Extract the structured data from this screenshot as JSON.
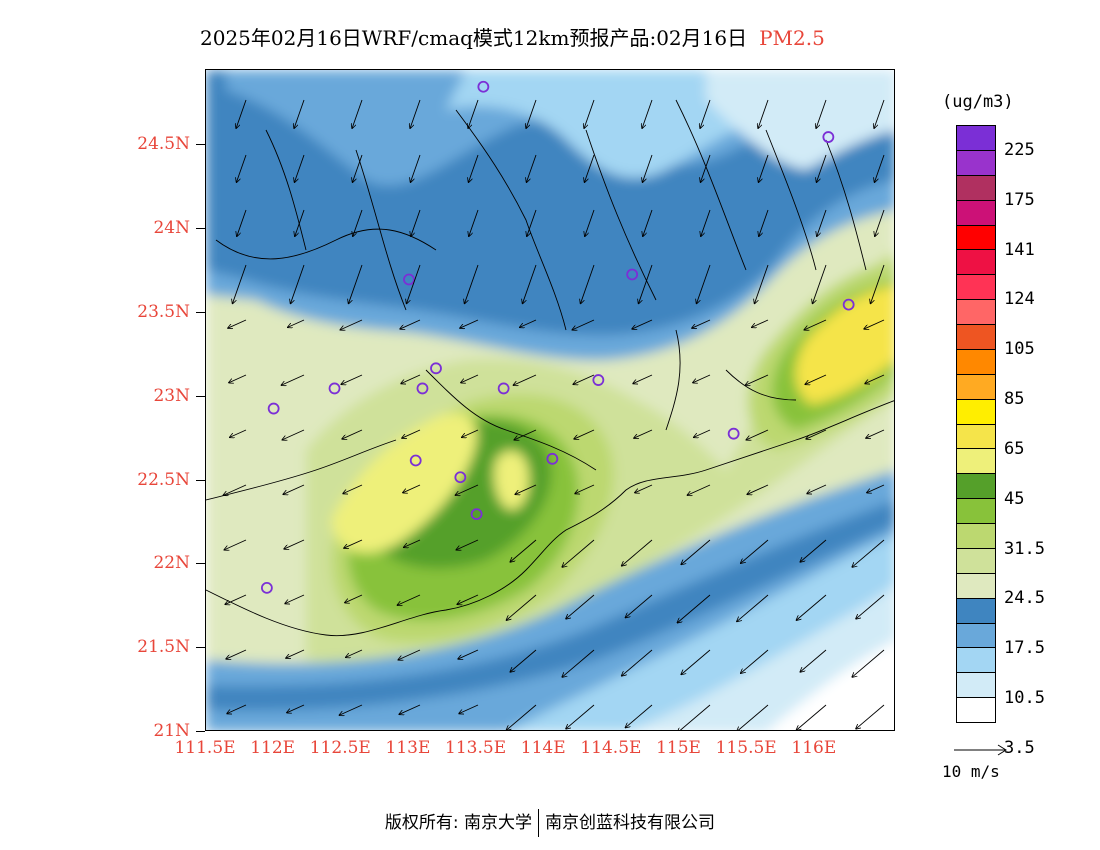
{
  "title": {
    "main": "2025年02月16日WRF/cmaq模式12km预报产品:02月16日",
    "pollutant": "PM2.5"
  },
  "axes": {
    "latitude_labels": [
      "24.5N",
      "24N",
      "23.5N",
      "23N",
      "22.5N",
      "22N",
      "21.5N",
      "21N"
    ],
    "latitude_values": [
      24.5,
      24.0,
      23.5,
      23.0,
      22.5,
      22.0,
      21.5,
      21.0
    ],
    "longitude_labels": [
      "111.5E",
      "112E",
      "112.5E",
      "113E",
      "113.5E",
      "114E",
      "114.5E",
      "115E",
      "115.5E",
      "116E"
    ],
    "longitude_values": [
      111.5,
      112.0,
      112.5,
      113.0,
      113.5,
      114.0,
      114.5,
      115.0,
      115.5,
      116.0
    ],
    "lon_range": [
      111.5,
      116.6
    ],
    "lat_range": [
      21.0,
      24.95
    ]
  },
  "legend": {
    "unit": "(ug/m3)",
    "labels": [
      "225",
      "175",
      "141",
      "124",
      "105",
      "85",
      "65",
      "45",
      "31.5",
      "24.5",
      "17.5",
      "10.5",
      "3.5"
    ],
    "colors_top_to_bottom": [
      "#7b2fd6",
      "#9933cc",
      "#b03060",
      "#cc1177",
      "#ff0000",
      "#ee1144",
      "#ff3355",
      "#ff6666",
      "#ee5522",
      "#ff8800",
      "#ffaa22",
      "#ffee00",
      "#f5e44a",
      "#eef07a",
      "#55a02a",
      "#88c23a",
      "#bcd870",
      "#cfe19a",
      "#dfe9bf",
      "#3f85c0",
      "#69a8da",
      "#a3d6f3",
      "#d2ebf7",
      "#ffffff"
    ]
  },
  "wind": {
    "reference_label": "10 m/s"
  },
  "stations": [
    {
      "lon": 113.55,
      "lat": 24.85
    },
    {
      "lon": 116.1,
      "lat": 24.55
    },
    {
      "lon": 113.0,
      "lat": 23.7
    },
    {
      "lon": 114.65,
      "lat": 23.73
    },
    {
      "lon": 116.25,
      "lat": 23.55
    },
    {
      "lon": 112.45,
      "lat": 23.05
    },
    {
      "lon": 112.0,
      "lat": 22.93
    },
    {
      "lon": 113.1,
      "lat": 23.05
    },
    {
      "lon": 113.2,
      "lat": 23.17
    },
    {
      "lon": 113.7,
      "lat": 23.05
    },
    {
      "lon": 114.4,
      "lat": 23.1
    },
    {
      "lon": 115.4,
      "lat": 22.78
    },
    {
      "lon": 113.05,
      "lat": 22.62
    },
    {
      "lon": 113.38,
      "lat": 22.52
    },
    {
      "lon": 114.06,
      "lat": 22.63
    },
    {
      "lon": 113.5,
      "lat": 22.3
    },
    {
      "lon": 111.95,
      "lat": 21.86
    }
  ],
  "footer": {
    "copyright_label": "版权所有: 南京大学",
    "company": "南京创蓝科技有限公司"
  }
}
